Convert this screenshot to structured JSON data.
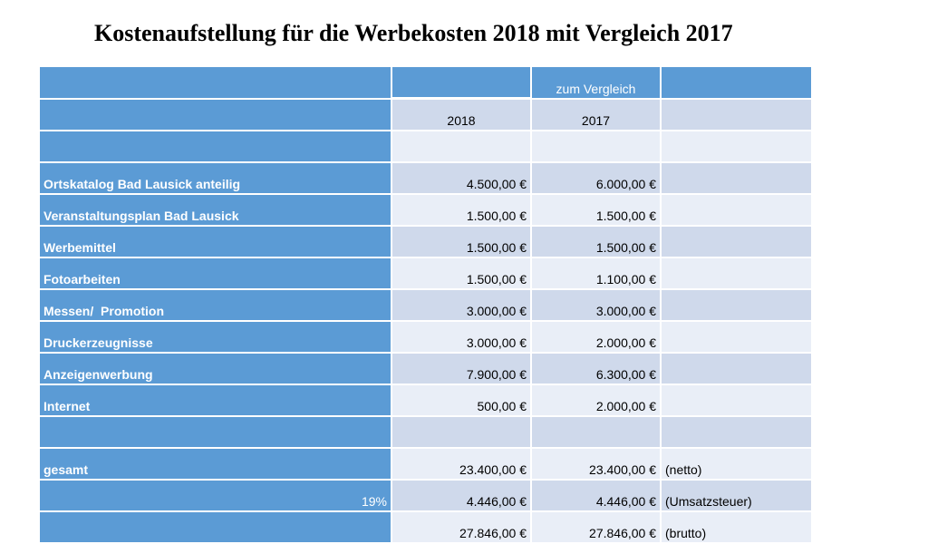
{
  "title": "Kostenaufstellung für die Werbekosten 2018 mit Vergleich 2017",
  "header": {
    "comparison_label": "zum Vergleich",
    "year_current": "2018",
    "year_previous": "2017"
  },
  "rows": [
    {
      "label": "Ortskatalog Bad Lausick anteilig",
      "v2018": "4.500,00 €",
      "v2017": "6.000,00 €",
      "note": ""
    },
    {
      "label": "Veranstaltungsplan Bad Lausick",
      "v2018": "1.500,00 €",
      "v2017": "1.500,00 €",
      "note": ""
    },
    {
      "label": "Werbemittel",
      "v2018": "1.500,00 €",
      "v2017": "1.500,00 €",
      "note": ""
    },
    {
      "label": "Fotoarbeiten",
      "v2018": "1.500,00 €",
      "v2017": "1.100,00 €",
      "note": ""
    },
    {
      "label": "Messen/  Promotion",
      "v2018": "3.000,00 €",
      "v2017": "3.000,00 €",
      "note": ""
    },
    {
      "label": "Druckerzeugnisse",
      "v2018": "3.000,00 €",
      "v2017": "2.000,00 €",
      "note": ""
    },
    {
      "label": "Anzeigenwerbung",
      "v2018": "7.900,00 €",
      "v2017": "6.300,00 €",
      "note": ""
    },
    {
      "label": "Internet",
      "v2018": "500,00 €",
      "v2017": "2.000,00 €",
      "note": ""
    }
  ],
  "totals": {
    "net": {
      "label": "gesamt",
      "v2018": "23.400,00 €",
      "v2017": "23.400,00 €",
      "note": "(netto)"
    },
    "vat": {
      "label": "19%",
      "v2018": "4.446,00 €",
      "v2017": "4.446,00 €",
      "note": "(Umsatzsteuer)"
    },
    "gross": {
      "label": "",
      "v2018": "27.846,00 €",
      "v2017": "27.846,00 €",
      "note": "(brutto)"
    }
  }
}
